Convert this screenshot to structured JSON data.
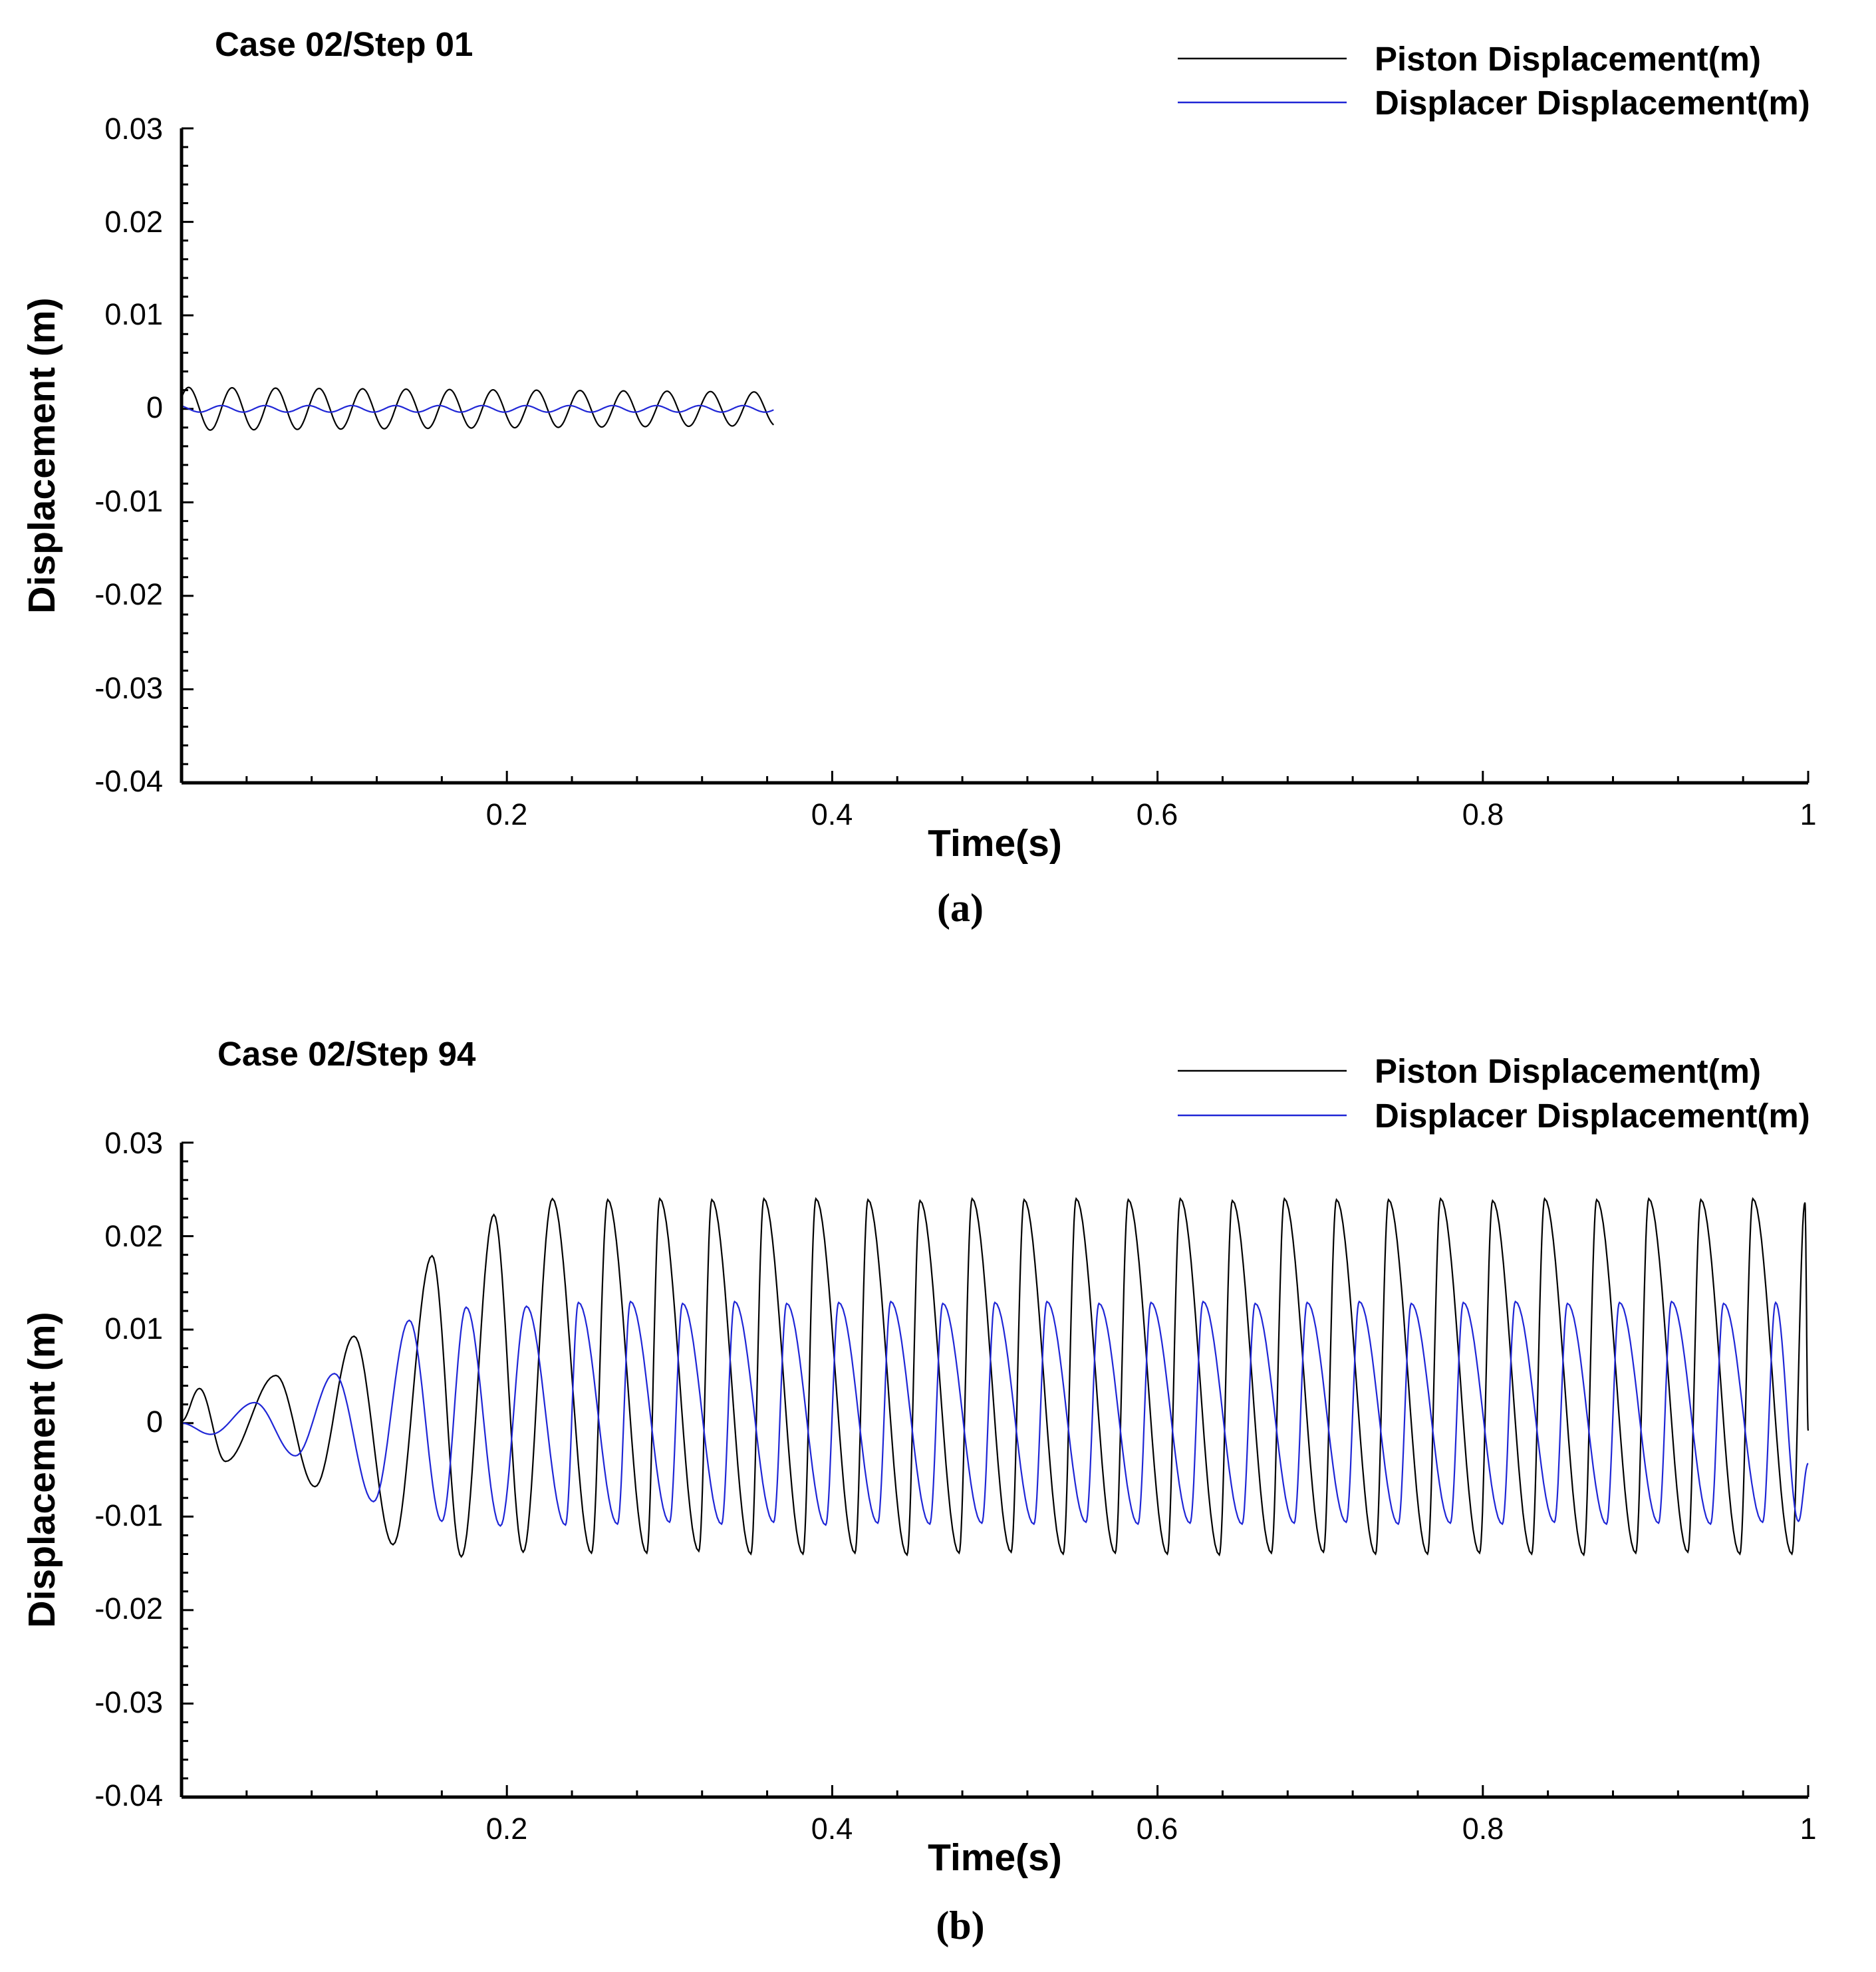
{
  "chart_data": [
    {
      "type": "line",
      "panel_caption": "(a)",
      "title": "Case 02/Step 01",
      "xlabel": "Time(s)",
      "ylabel": "Displacement (m)",
      "xlim": [
        0,
        1
      ],
      "ylim": [
        -0.04,
        0.03
      ],
      "xticks": [
        0.2,
        0.4,
        0.6,
        0.8,
        1
      ],
      "xtick_labels": [
        "0.2",
        "0.4",
        "0.6",
        "0.8",
        "1"
      ],
      "yticks": [
        0.03,
        0.02,
        0.01,
        0,
        -0.01,
        -0.02,
        -0.03,
        -0.04
      ],
      "ytick_labels": [
        "0.03",
        "0.02",
        "0.01",
        "0",
        "-0.01",
        "-0.02",
        "-0.03",
        "-0.04"
      ],
      "grid": false,
      "legend_position": "top-right",
      "series": [
        {
          "name": "Piston Displacement(m)",
          "color": "#000000",
          "model": {
            "t_end": 0.364,
            "frequency": 37.4,
            "phase": 0.55,
            "amp_start": 0.0023,
            "amp_end": 0.0018,
            "offset": 0
          }
        },
        {
          "name": "Displacer Displacement(m)",
          "color": "#1f26d6",
          "model": {
            "t_end": 0.364,
            "frequency": 37.4,
            "phase": 2.1,
            "amp_start": 0.00035,
            "amp_end": 0.00035,
            "offset": 0
          }
        }
      ]
    },
    {
      "type": "line",
      "panel_caption": "(b)",
      "title": "Case 02/Step 94",
      "xlabel": "Time(s)",
      "ylabel": "Displacement (m)",
      "xlim": [
        0,
        1
      ],
      "ylim": [
        -0.04,
        0.03
      ],
      "xticks": [
        0.2,
        0.4,
        0.6,
        0.8,
        1
      ],
      "xtick_labels": [
        "0.2",
        "0.4",
        "0.6",
        "0.8",
        "1"
      ],
      "yticks": [
        0.03,
        0.02,
        0.01,
        0,
        -0.01,
        -0.02,
        -0.03,
        -0.04
      ],
      "ytick_labels": [
        "0.03",
        "0.02",
        "0.01",
        "0",
        "-0.01",
        "-0.02",
        "-0.03",
        "-0.04"
      ],
      "grid": false,
      "legend_position": "top-right",
      "series": [
        {
          "name": "Piston Displacement(m)",
          "color": "#000000",
          "peaks": [
            [
              0.011,
              0.0037
            ],
            [
              0.027,
              -0.0041
            ],
            [
              0.058,
              0.0051
            ],
            [
              0.082,
              -0.0068
            ],
            [
              0.106,
              0.0093
            ],
            [
              0.13,
              -0.013
            ],
            [
              0.154,
              0.0179
            ],
            [
              0.172,
              -0.0143
            ],
            [
              0.192,
              0.0223
            ],
            [
              0.21,
              -0.0138
            ],
            [
              0.228,
              0.024
            ],
            [
              0.252,
              -0.0139
            ],
            [
              0.262,
              0.0239
            ],
            [
              0.286,
              -0.0139
            ],
            [
              0.294,
              0.024
            ],
            [
              0.318,
              -0.0137
            ],
            [
              0.326,
              0.0239
            ],
            [
              0.35,
              -0.014
            ],
            [
              0.358,
              0.024
            ],
            [
              0.382,
              -0.014
            ],
            [
              0.39,
              0.024
            ],
            [
              0.414,
              -0.0139
            ],
            [
              0.422,
              0.0239
            ],
            [
              0.446,
              -0.0141
            ],
            [
              0.454,
              0.0238
            ],
            [
              0.478,
              -0.0139
            ],
            [
              0.486,
              0.024
            ],
            [
              0.51,
              -0.0138
            ],
            [
              0.518,
              0.0239
            ],
            [
              0.542,
              -0.014
            ],
            [
              0.55,
              0.024
            ],
            [
              0.574,
              -0.0139
            ],
            [
              0.582,
              0.0239
            ],
            [
              0.606,
              -0.014
            ],
            [
              0.614,
              0.024
            ],
            [
              0.638,
              -0.0141
            ],
            [
              0.646,
              0.0238
            ],
            [
              0.67,
              -0.0139
            ],
            [
              0.678,
              0.024
            ],
            [
              0.702,
              -0.0138
            ],
            [
              0.71,
              0.0239
            ],
            [
              0.734,
              -0.014
            ],
            [
              0.742,
              0.0239
            ],
            [
              0.766,
              -0.014
            ],
            [
              0.774,
              0.024
            ],
            [
              0.798,
              -0.0139
            ],
            [
              0.806,
              0.0238
            ],
            [
              0.83,
              -0.014
            ],
            [
              0.838,
              0.024
            ],
            [
              0.862,
              -0.0141
            ],
            [
              0.87,
              0.0239
            ],
            [
              0.894,
              -0.0139
            ],
            [
              0.902,
              0.024
            ],
            [
              0.926,
              -0.0138
            ],
            [
              0.934,
              0.0239
            ],
            [
              0.958,
              -0.014
            ],
            [
              0.966,
              0.024
            ],
            [
              0.99,
              -0.014
            ],
            [
              0.998,
              0.0236
            ]
          ],
          "start": [
            0.0,
            0.0002
          ],
          "end": [
            1.0,
            -0.0008
          ]
        },
        {
          "name": "Displacer Displacement(m)",
          "color": "#1f26d6",
          "peaks": [
            [
              0.018,
              -0.0012
            ],
            [
              0.045,
              0.0022
            ],
            [
              0.07,
              -0.0035
            ],
            [
              0.094,
              0.0053
            ],
            [
              0.118,
              -0.0084
            ],
            [
              0.14,
              0.011
            ],
            [
              0.16,
              -0.0105
            ],
            [
              0.175,
              0.0124
            ],
            [
              0.196,
              -0.011
            ],
            [
              0.212,
              0.0125
            ],
            [
              0.236,
              -0.0109
            ],
            [
              0.244,
              0.0129
            ],
            [
              0.268,
              -0.0108
            ],
            [
              0.276,
              0.013
            ],
            [
              0.3,
              -0.0106
            ],
            [
              0.308,
              0.0128
            ],
            [
              0.332,
              -0.0108
            ],
            [
              0.34,
              0.013
            ],
            [
              0.364,
              -0.0106
            ],
            [
              0.372,
              0.0128
            ],
            [
              0.396,
              -0.0109
            ],
            [
              0.404,
              0.0129
            ],
            [
              0.428,
              -0.0107
            ],
            [
              0.436,
              0.013
            ],
            [
              0.46,
              -0.0108
            ],
            [
              0.468,
              0.0128
            ],
            [
              0.492,
              -0.0107
            ],
            [
              0.5,
              0.0129
            ],
            [
              0.524,
              -0.0108
            ],
            [
              0.532,
              0.013
            ],
            [
              0.556,
              -0.0106
            ],
            [
              0.564,
              0.0128
            ],
            [
              0.588,
              -0.0108
            ],
            [
              0.596,
              0.0129
            ],
            [
              0.62,
              -0.0107
            ],
            [
              0.628,
              0.013
            ],
            [
              0.652,
              -0.0108
            ],
            [
              0.66,
              0.0128
            ],
            [
              0.684,
              -0.0107
            ],
            [
              0.692,
              0.0129
            ],
            [
              0.716,
              -0.0106
            ],
            [
              0.724,
              0.013
            ],
            [
              0.748,
              -0.0108
            ],
            [
              0.756,
              0.0128
            ],
            [
              0.78,
              -0.0107
            ],
            [
              0.788,
              0.0129
            ],
            [
              0.812,
              -0.0108
            ],
            [
              0.82,
              0.013
            ],
            [
              0.844,
              -0.0106
            ],
            [
              0.852,
              0.0128
            ],
            [
              0.876,
              -0.0108
            ],
            [
              0.884,
              0.0129
            ],
            [
              0.908,
              -0.0107
            ],
            [
              0.916,
              0.013
            ],
            [
              0.94,
              -0.0108
            ],
            [
              0.948,
              0.0128
            ],
            [
              0.972,
              -0.0106
            ],
            [
              0.98,
              0.0129
            ],
            [
              0.994,
              -0.0105
            ]
          ],
          "start": [
            0.0,
            0.0
          ],
          "end": [
            1.0,
            -0.0043
          ]
        }
      ]
    }
  ]
}
